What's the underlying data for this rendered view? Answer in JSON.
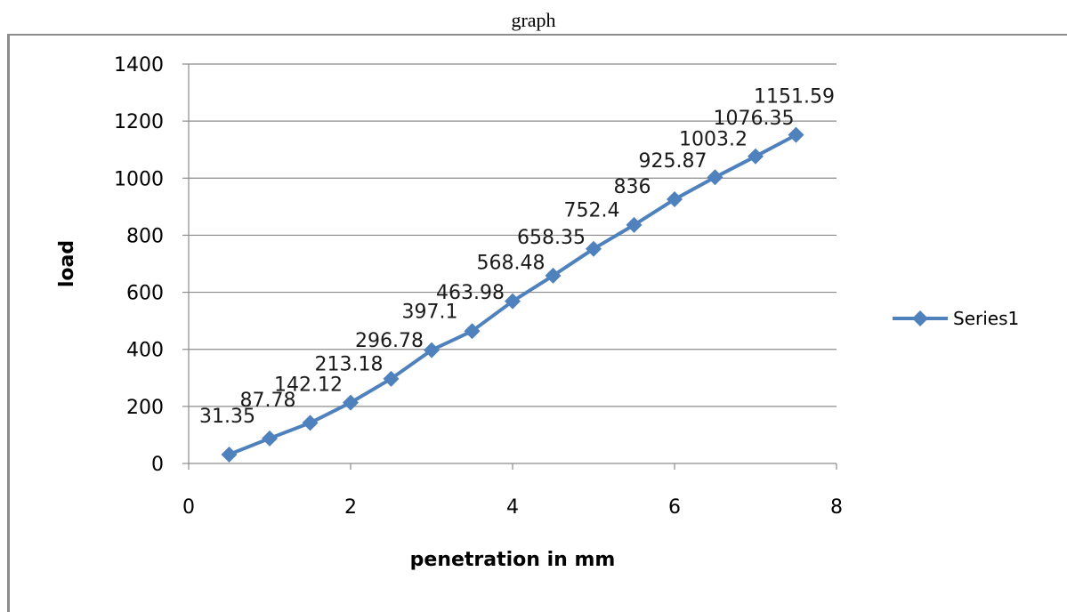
{
  "caption": "graph",
  "chart_data": {
    "type": "line",
    "title": "",
    "xlabel": "penetration in mm",
    "ylabel": "load",
    "xlim": [
      0,
      8
    ],
    "ylim": [
      0,
      1400
    ],
    "x_ticks": [
      0,
      2,
      4,
      6,
      8
    ],
    "y_ticks": [
      0,
      200,
      400,
      600,
      800,
      1000,
      1200,
      1400
    ],
    "grid": true,
    "legend_position": "right",
    "series": [
      {
        "name": "Series1",
        "color": "#4f81bd",
        "marker": "diamond",
        "x": [
          0.5,
          1.0,
          1.5,
          2.0,
          2.5,
          3.0,
          3.5,
          4.0,
          4.5,
          5.0,
          5.5,
          6.0,
          6.5,
          7.0,
          7.5
        ],
        "y": [
          31.35,
          87.78,
          142.12,
          213.18,
          296.78,
          397.1,
          463.98,
          568.48,
          658.35,
          752.4,
          836,
          925.87,
          1003.2,
          1076.35,
          1151.59
        ],
        "labels": [
          "31.35",
          "87.78",
          "142.12",
          "213.18",
          "296.78",
          "397.1",
          "463.98",
          "568.48",
          "658.35",
          "752.4",
          "836",
          "925.87",
          "1003.2",
          "1076.35",
          "1151.59"
        ]
      }
    ]
  }
}
